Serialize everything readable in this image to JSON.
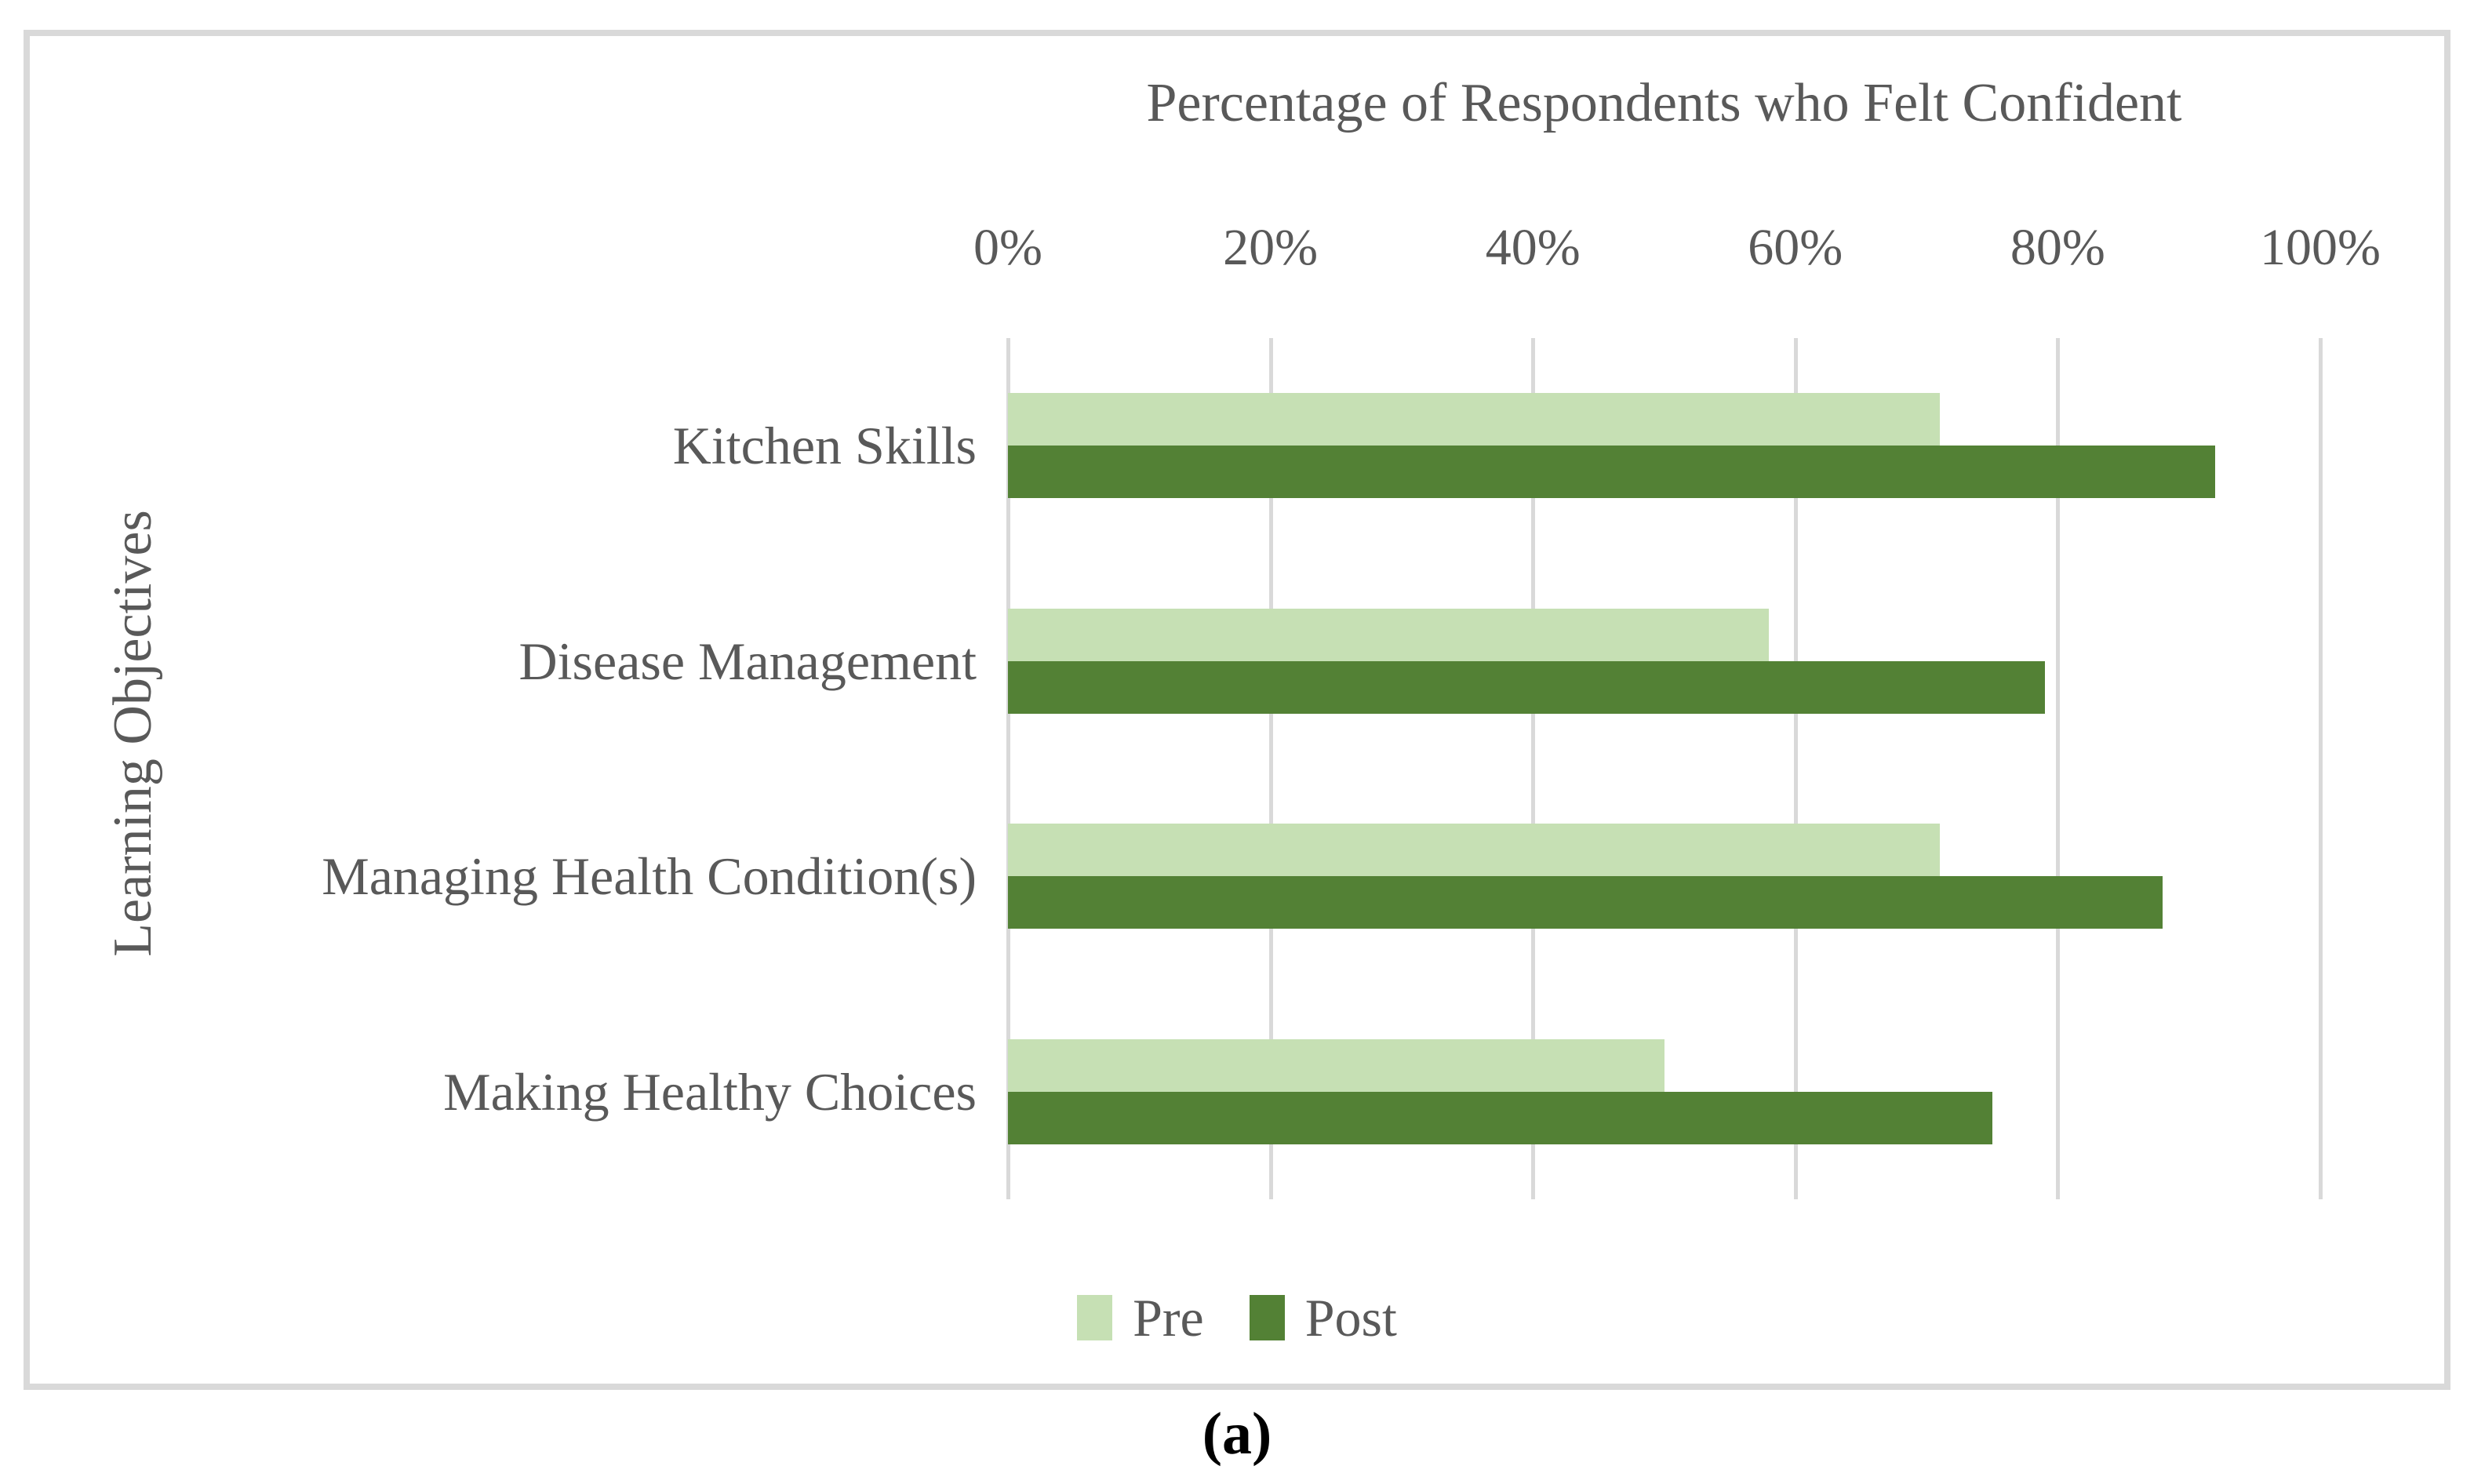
{
  "chart_data": {
    "type": "bar",
    "orientation": "horizontal",
    "title": "Percentage of Respondents who Felt Confident",
    "ylabel": "Learning Objectives",
    "xlabel": "",
    "categories": [
      "Kitchen Skills",
      "Disease Management",
      "Managing Health Condition(s)",
      "Making Healthy Choices"
    ],
    "series": [
      {
        "name": "Pre",
        "color": "#c6e0b4",
        "values": [
          71,
          58,
          71,
          50
        ]
      },
      {
        "name": "Post",
        "color": "#538135",
        "values": [
          92,
          79,
          88,
          75
        ]
      }
    ],
    "x_axis": {
      "min": 0,
      "max": 100,
      "tick_step": 20,
      "ticks": [
        "0%",
        "20%",
        "40%",
        "60%",
        "80%",
        "100%"
      ],
      "unit": "%"
    },
    "grid": true,
    "legend_position": "bottom"
  },
  "figure": {
    "caption_open": "(",
    "caption_letter": "a",
    "caption_close": ")"
  },
  "colors": {
    "text": "#595959",
    "grid": "#d9d9d9",
    "frame_border": "#d9d9d9",
    "caption": "#000000",
    "pre_bar": "#c6e0b4",
    "post_bar": "#538135"
  }
}
